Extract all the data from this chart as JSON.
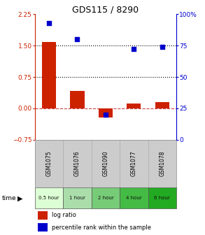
{
  "title": "GDS115 / 8290",
  "samples": [
    "GSM1075",
    "GSM1076",
    "GSM1090",
    "GSM1077",
    "GSM1078"
  ],
  "time_labels": [
    "0.5 hour",
    "1 hour",
    "2 hour",
    "4 hour",
    "6 hour"
  ],
  "log_ratio": [
    1.58,
    0.42,
    -0.22,
    0.12,
    0.15
  ],
  "percentile": [
    93,
    80,
    20,
    72,
    74
  ],
  "bar_color": "#cc2200",
  "dot_color": "#0000cc",
  "ylim_left": [
    -0.75,
    2.25
  ],
  "ylim_right": [
    0,
    100
  ],
  "yticks_left": [
    -0.75,
    0,
    0.75,
    1.5,
    2.25
  ],
  "yticks_right": [
    0,
    25,
    50,
    75,
    100
  ],
  "sample_bg": "#cccccc",
  "time_bg_colors": [
    "#ddffd5",
    "#aaddaa",
    "#77cc77",
    "#44bb44",
    "#22aa22"
  ]
}
